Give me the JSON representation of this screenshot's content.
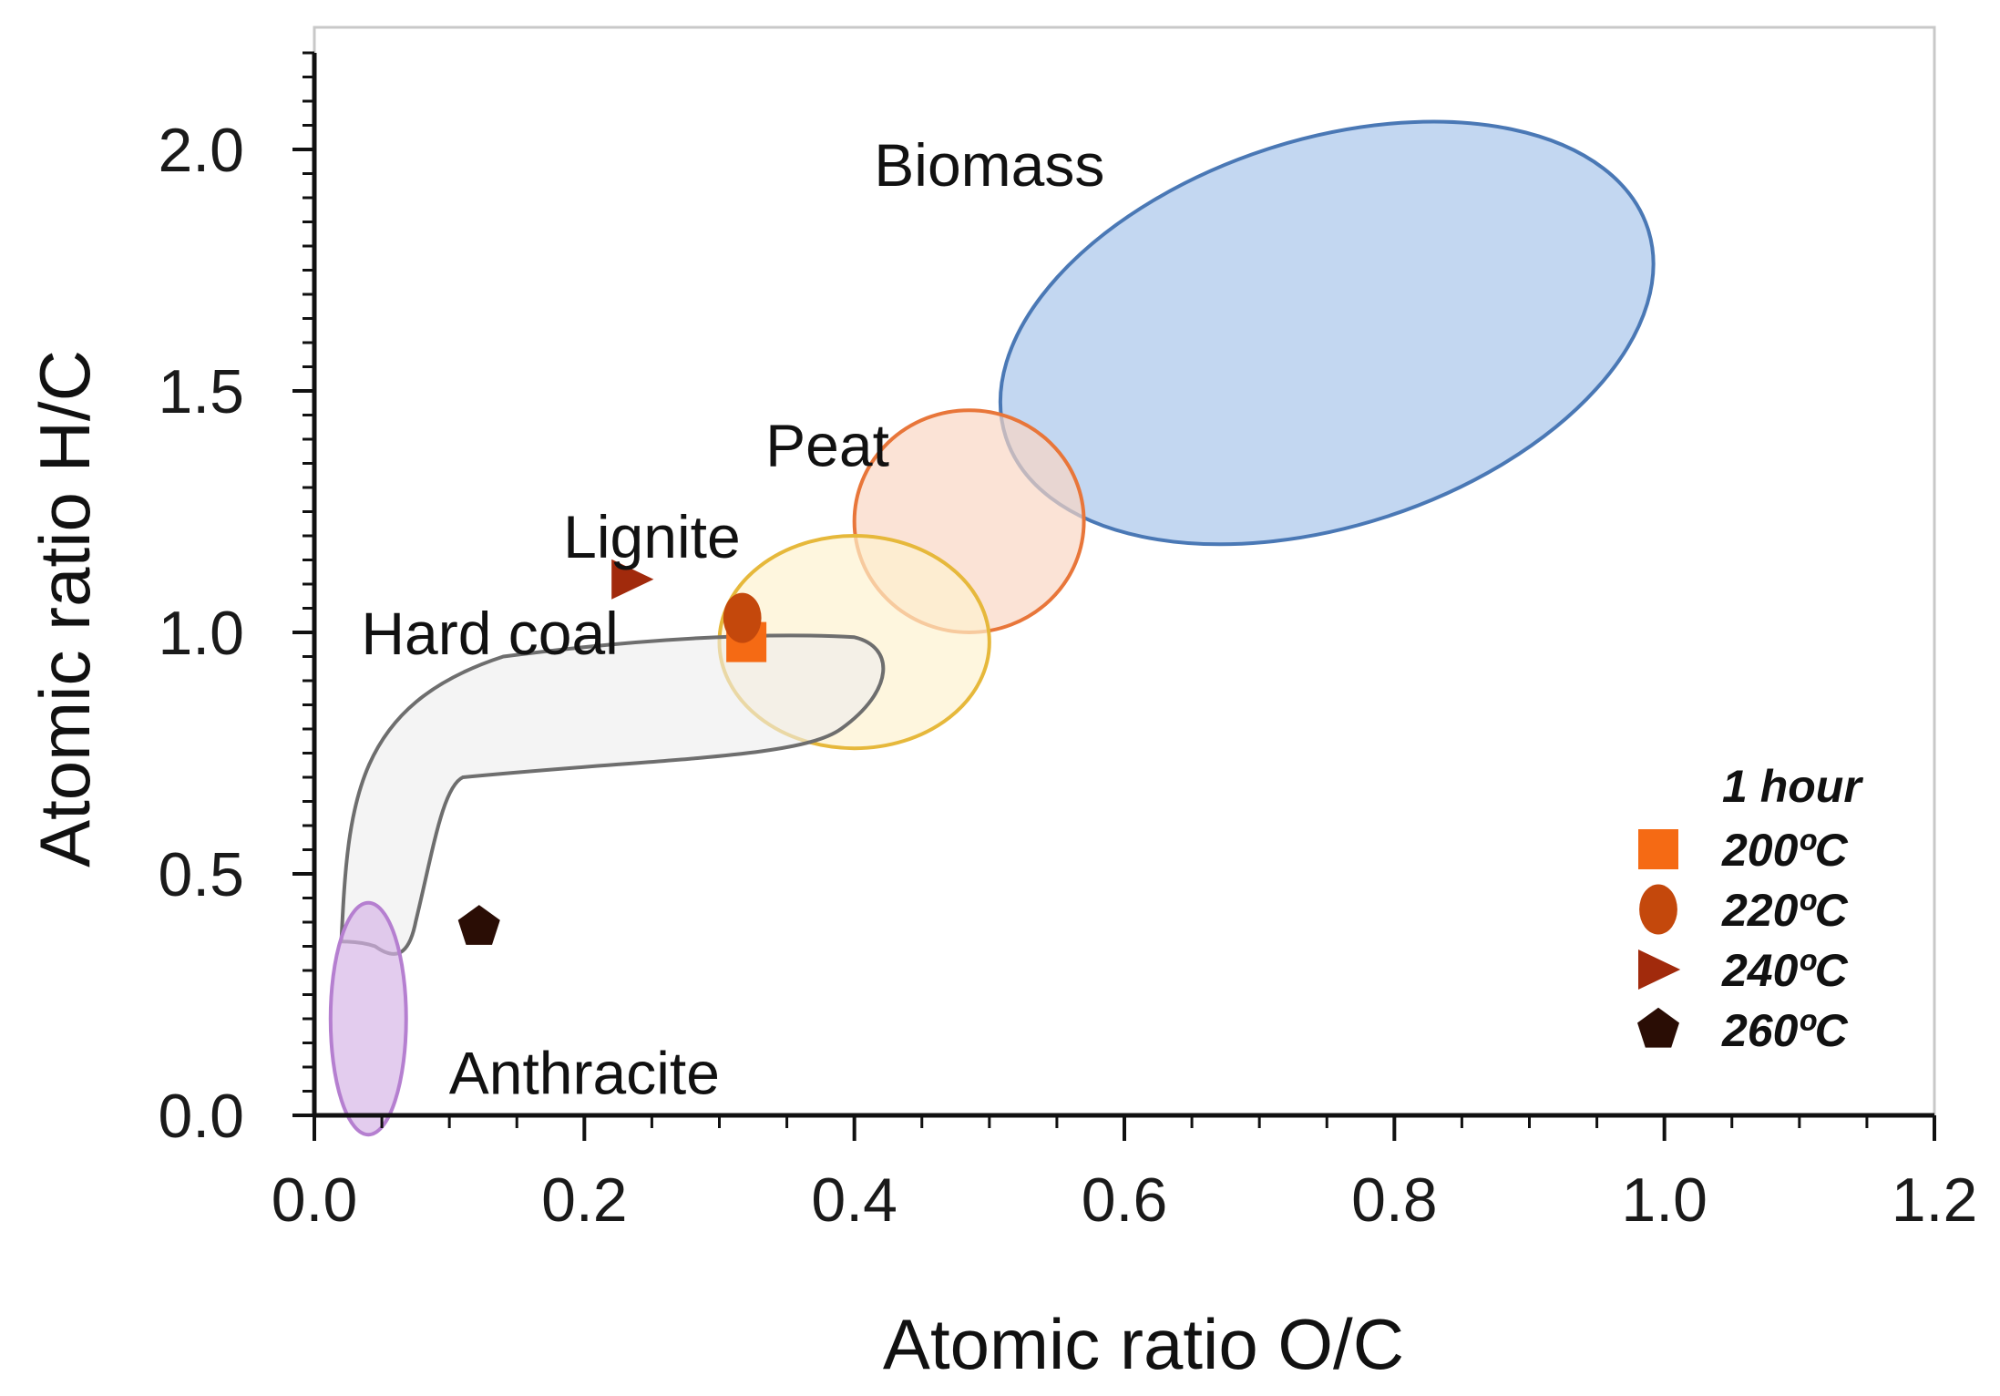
{
  "chart_data": {
    "type": "scatter",
    "title": "",
    "xlabel": "Atomic ratio O/C",
    "ylabel": "Atomic ratio H/C",
    "xlim": [
      0.0,
      1.2
    ],
    "ylim": [
      0.0,
      2.2
    ],
    "xticks": [
      "0.0",
      "0.2",
      "0.4",
      "0.6",
      "0.8",
      "1.0",
      "1.2"
    ],
    "yticks": [
      "0.0",
      "0.5",
      "1.0",
      "1.5",
      "2.0"
    ],
    "grid": false,
    "legend_title": "1 hour",
    "legend_position": "bottom-right",
    "regions": [
      {
        "name": "Biomass",
        "label": "Biomass",
        "center": [
          0.75,
          1.62
        ],
        "semi_axis_x": 0.25,
        "semi_axis_y": 0.4,
        "rotation_deg": -18,
        "fill": "#a6c4ea",
        "stroke": "#4a78b5",
        "label_at": [
          0.5,
          1.97
        ]
      },
      {
        "name": "Peat",
        "label": "Peat",
        "center": [
          0.485,
          1.23
        ],
        "semi_axis_x": 0.085,
        "semi_axis_y": 0.23,
        "rotation_deg": 0,
        "fill": "#f9d6c2",
        "stroke": "#e8763a",
        "label_at": [
          0.38,
          1.39
        ]
      },
      {
        "name": "Lignite",
        "label": "Lignite",
        "center": [
          0.4,
          0.98
        ],
        "semi_axis_x": 0.1,
        "semi_axis_y": 0.22,
        "rotation_deg": 0,
        "fill": "#fdf2cf",
        "stroke": "#e6b83b",
        "label_at": [
          0.25,
          1.2
        ]
      },
      {
        "name": "Hard coal",
        "label": "Hard coal",
        "fill": "#ececec",
        "stroke": "#6e6e6e",
        "label_at": [
          0.13,
          1.0
        ]
      },
      {
        "name": "Anthracite",
        "label": "Anthracite",
        "center": [
          0.04,
          0.2
        ],
        "semi_axis_x": 0.028,
        "semi_axis_y": 0.24,
        "rotation_deg": 0,
        "fill": "#d6b4e6",
        "stroke": "#b57fd0",
        "label_at": [
          0.2,
          0.09
        ]
      }
    ],
    "series": [
      {
        "name": "200ºC",
        "marker": "square",
        "color": "#f56a14",
        "x": [
          0.32
        ],
        "y": [
          0.98
        ]
      },
      {
        "name": "220ºC",
        "marker": "circle",
        "color": "#c4480c",
        "x": [
          0.317
        ],
        "y": [
          1.03
        ]
      },
      {
        "name": "240ºC",
        "marker": "triangle-right",
        "color": "#a12a0c",
        "x": [
          0.235
        ],
        "y": [
          1.11
        ]
      },
      {
        "name": "260ºC",
        "marker": "pentagon",
        "color": "#2a0d05",
        "x": [
          0.122
        ],
        "y": [
          0.39
        ]
      }
    ]
  }
}
